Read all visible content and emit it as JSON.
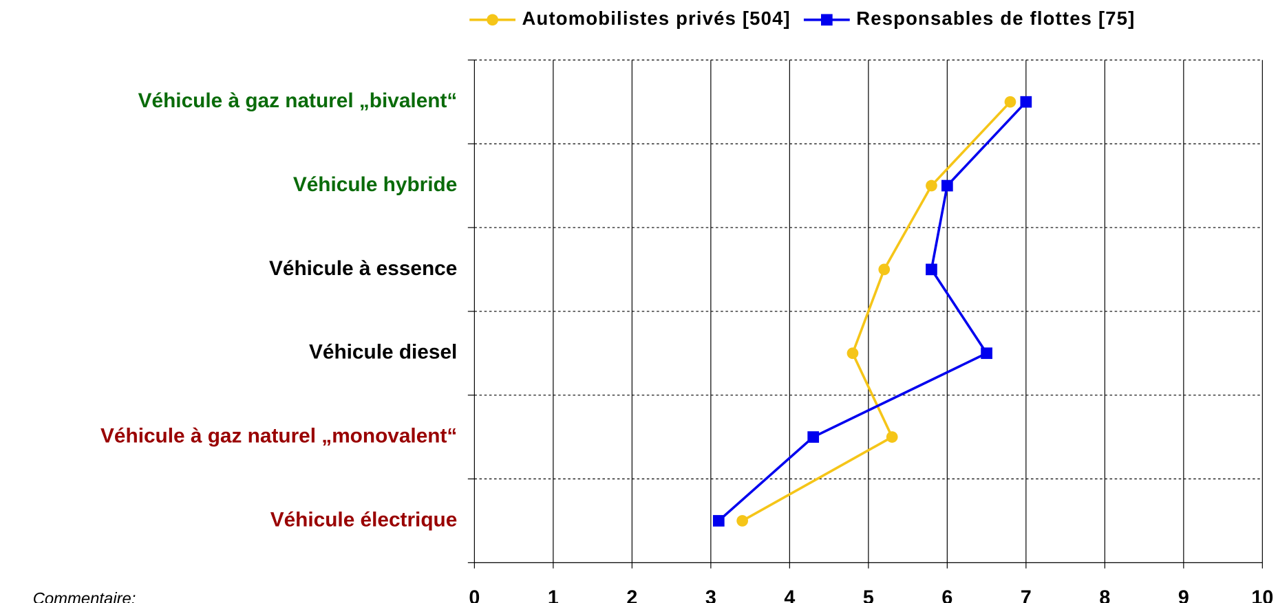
{
  "chart_data": {
    "type": "line",
    "orientation": "horizontal",
    "categories": [
      "Véhicule à gaz naturel „bivalent“",
      "Véhicule hybride",
      "Véhicule à essence",
      "Véhicule diesel",
      "Véhicule à gaz naturel „monovalent“",
      "Véhicule électrique"
    ],
    "category_colors": [
      "#0a6b0a",
      "#0a6b0a",
      "#000000",
      "#000000",
      "#990000",
      "#990000"
    ],
    "series": [
      {
        "name": "Automobilistes privés [504]",
        "color": "#f5c518",
        "marker": "circle",
        "values": [
          6.8,
          5.8,
          5.2,
          4.8,
          5.3,
          3.4
        ]
      },
      {
        "name": "Responsables de flottes [75]",
        "color": "#0000ee",
        "marker": "square",
        "values": [
          7.0,
          6.0,
          5.8,
          6.5,
          4.3,
          3.1
        ]
      }
    ],
    "xlim": [
      0,
      10
    ],
    "xticks": [
      0,
      1,
      2,
      3,
      4,
      5,
      6,
      7,
      8,
      9,
      10
    ],
    "grid": true,
    "legend": "top",
    "note": "Commentaire:"
  }
}
